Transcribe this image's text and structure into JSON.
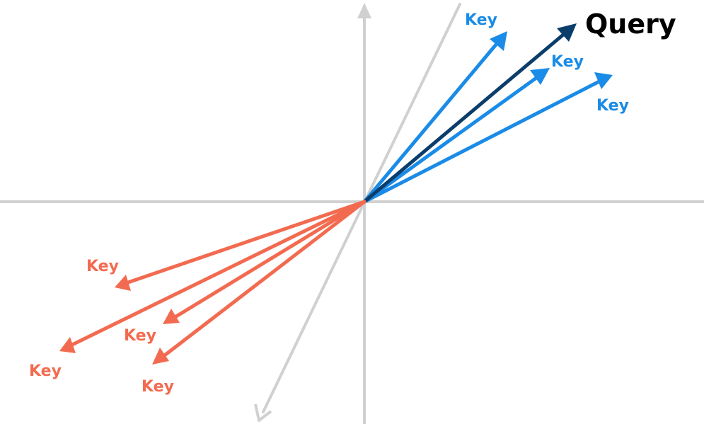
{
  "colors": {
    "axis": "#d0d0d0",
    "query": "#0b3d6b",
    "similar_key": "#1a8be6",
    "dissimilar_key": "#f26b50",
    "query_label": "#000000"
  },
  "query": {
    "label": "Query"
  },
  "similar_keys": [
    {
      "label": "Key"
    },
    {
      "label": "Key"
    },
    {
      "label": "Key"
    }
  ],
  "dissimilar_keys": [
    {
      "label": "Key"
    },
    {
      "label": "Key"
    },
    {
      "label": "Key"
    },
    {
      "label": "Key"
    }
  ]
}
